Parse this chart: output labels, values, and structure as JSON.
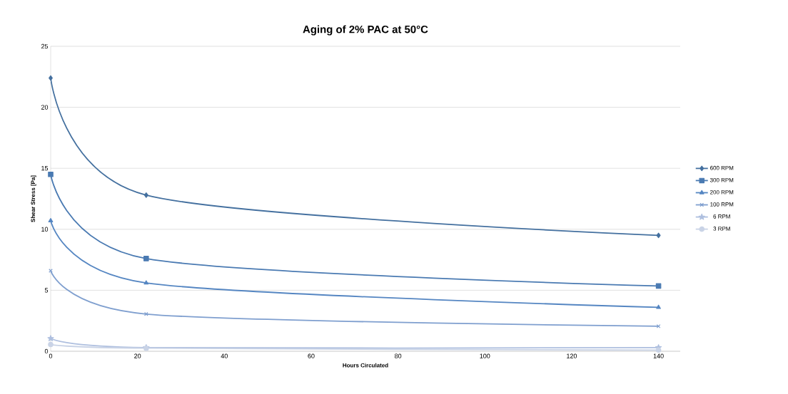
{
  "chart_data": {
    "type": "line",
    "title": "Aging of 2% PAC at 50°C",
    "xlabel": "Hours Circulated",
    "ylabel": "Shear Stress [Pa]",
    "x": [
      0,
      22,
      140
    ],
    "series": [
      {
        "name": "600 RPM",
        "color": "#44709f",
        "marker": "diamond",
        "values": [
          22.4,
          12.8,
          9.5
        ]
      },
      {
        "name": "300 RPM",
        "color": "#4a7ab2",
        "marker": "square",
        "values": [
          14.5,
          7.6,
          5.35
        ]
      },
      {
        "name": "200 RPM",
        "color": "#5586c2",
        "marker": "triangle",
        "values": [
          10.7,
          5.6,
          3.6
        ]
      },
      {
        "name": "100 RPM",
        "color": "#7f9fcf",
        "marker": "cross",
        "values": [
          6.6,
          3.05,
          2.05
        ]
      },
      {
        "name": "6 RPM",
        "color": "#aebfdf",
        "marker": "star",
        "values": [
          1.05,
          0.3,
          0.3
        ]
      },
      {
        "name": "3 RPM",
        "color": "#c9d3e6",
        "marker": "circle",
        "values": [
          0.55,
          0.25,
          0.1
        ]
      }
    ],
    "xlim": [
      0,
      145
    ],
    "xticks": [
      0,
      20,
      40,
      60,
      80,
      100,
      120,
      140
    ],
    "ylim": [
      0,
      25
    ],
    "yticks": [
      0,
      5,
      10,
      15,
      20,
      25
    ],
    "grid": "y",
    "legend": "right",
    "line_style": "solid"
  }
}
